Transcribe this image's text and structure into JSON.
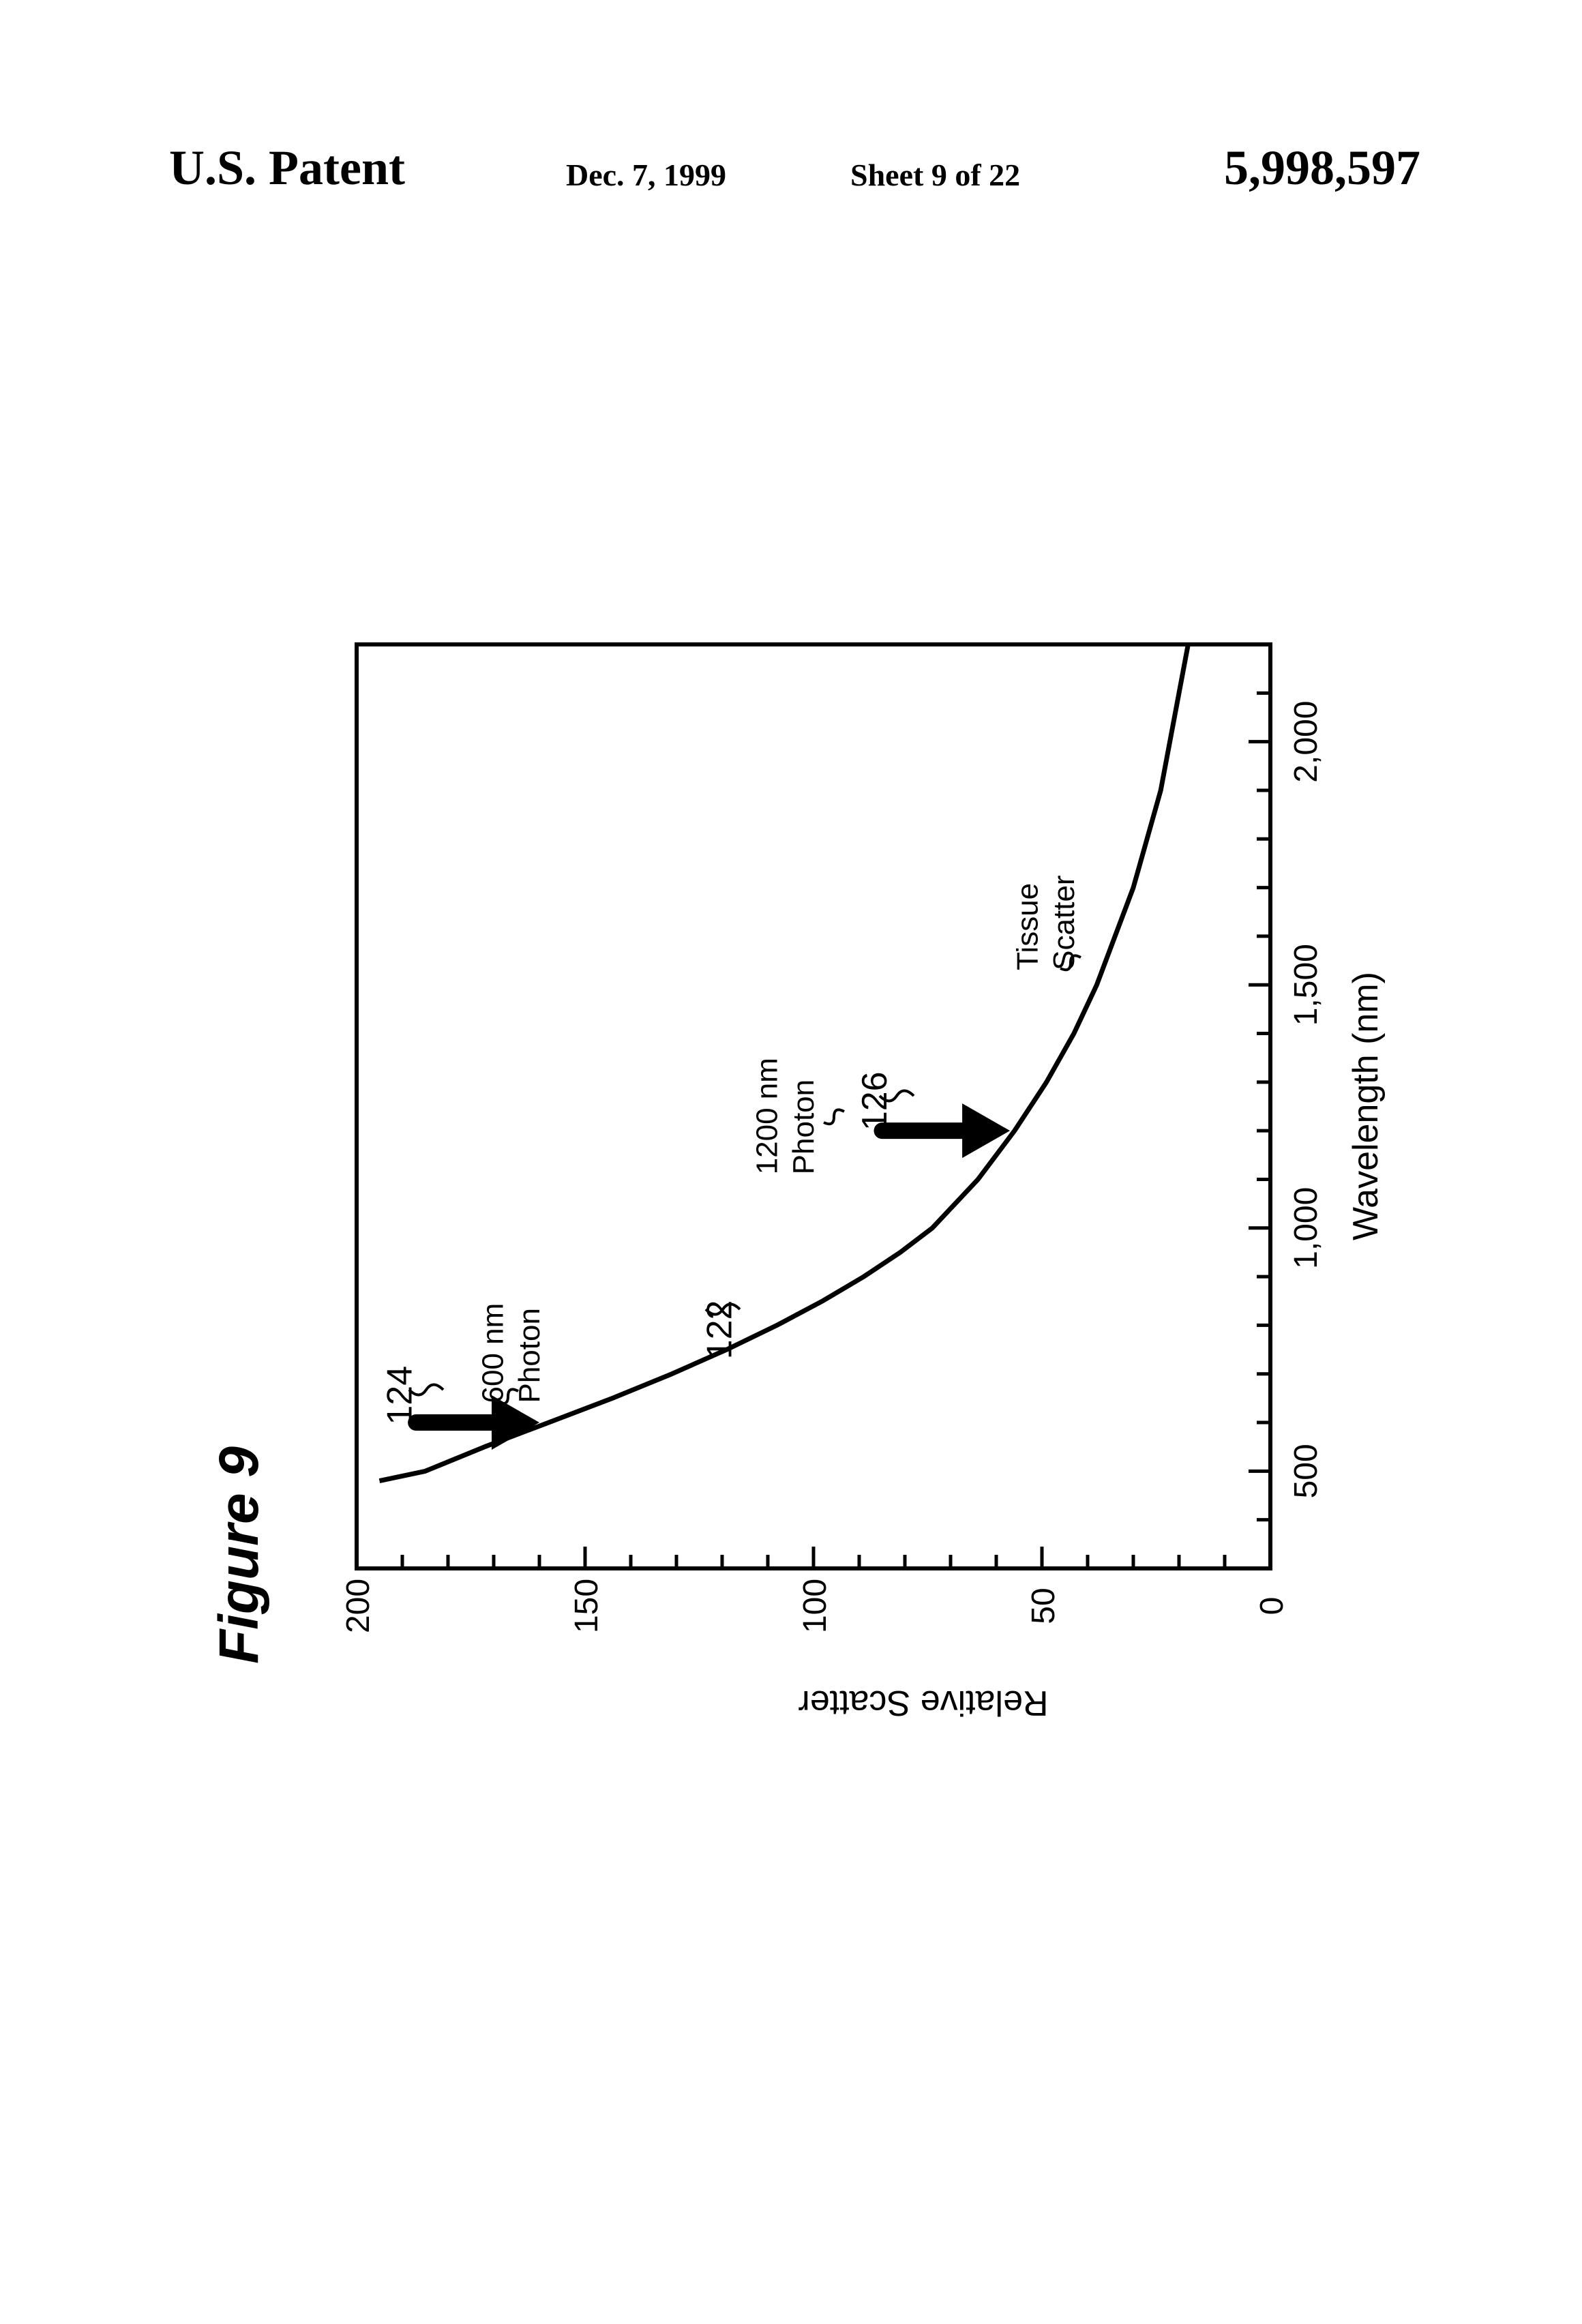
{
  "header": {
    "patent_label": "U.S. Patent",
    "date": "Dec. 7, 1999",
    "sheet": "Sheet 9 of 22",
    "patent_number": "5,998,597"
  },
  "figure": {
    "title": "Figure 9"
  },
  "chart_data": {
    "type": "line",
    "title": "Figure 9",
    "xlabel": "Wavelength (nm)",
    "ylabel": "Relative Scatter",
    "xlim": [
      300,
      2200
    ],
    "ylim": [
      0,
      200
    ],
    "x_ticks": [
      {
        "value": 500,
        "label": "500"
      },
      {
        "value": 1000,
        "label": "1,000"
      },
      {
        "value": 1500,
        "label": "1,500"
      },
      {
        "value": 2000,
        "label": "2,000"
      }
    ],
    "y_ticks": [
      {
        "value": 0,
        "label": "0"
      },
      {
        "value": 50,
        "label": "50"
      },
      {
        "value": 100,
        "label": "100"
      },
      {
        "value": 150,
        "label": "150"
      },
      {
        "value": 200,
        "label": "200"
      }
    ],
    "x_minor_step": 100,
    "y_minor_step": 10,
    "series": [
      {
        "x": [
          480,
          500,
          550,
          600,
          650,
          700,
          750,
          800,
          850,
          900,
          950,
          1000,
          1100,
          1200,
          1300,
          1400,
          1500,
          1600,
          1700,
          1800,
          1900,
          2000,
          2100,
          2200
        ],
        "y": [
          195,
          185,
          172,
          158,
          144,
          131,
          119,
          108,
          98,
          89,
          81,
          74,
          64,
          56,
          49,
          43,
          38,
          34,
          30,
          27,
          24,
          22,
          20,
          18
        ]
      }
    ],
    "annotations": [
      {
        "kind": "arrow",
        "x_from": 600,
        "x_to": 600,
        "y_from": 187,
        "y_to": 160
      },
      {
        "kind": "arrow",
        "x_from": 1200,
        "x_to": 1200,
        "y_from": 85,
        "y_to": 57
      },
      {
        "kind": "label",
        "text": "124",
        "x": 595,
        "y": 188
      },
      {
        "kind": "label",
        "text": "600 nm",
        "x": 640,
        "y": 168
      },
      {
        "kind": "label",
        "text": "Photon",
        "x": 640,
        "y": 160
      },
      {
        "kind": "label",
        "text": "122",
        "x": 730,
        "y": 118
      },
      {
        "kind": "label",
        "text": "1200 nm",
        "x": 1110,
        "y": 108
      },
      {
        "kind": "label",
        "text": "Photon",
        "x": 1110,
        "y": 100
      },
      {
        "kind": "label",
        "text": "126",
        "x": 1200,
        "y": 84
      },
      {
        "kind": "label",
        "text": "Tissue",
        "x": 1530,
        "y": 51
      },
      {
        "kind": "label",
        "text": "Scatter",
        "x": 1530,
        "y": 43
      }
    ]
  }
}
